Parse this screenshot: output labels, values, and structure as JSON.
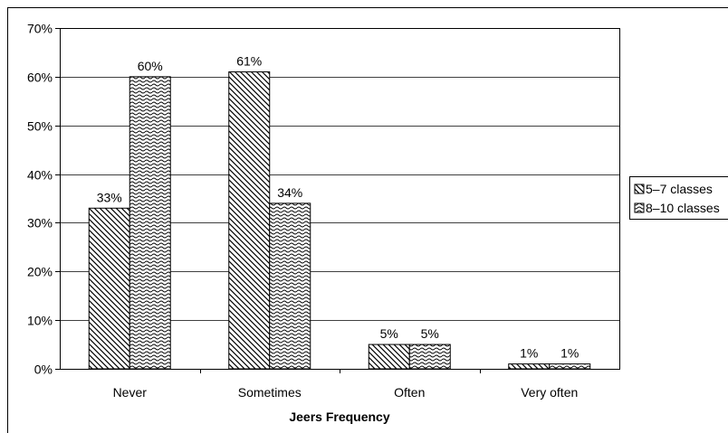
{
  "chart_data": {
    "type": "bar",
    "title": "",
    "xlabel": "Jeers Frequency",
    "ylabel": "",
    "categories": [
      "Never",
      "Sometimes",
      "Often",
      "Very often"
    ],
    "series": [
      {
        "name": "5–7 classes",
        "values": [
          33,
          61,
          5,
          1
        ],
        "labels": [
          "33%",
          "61%",
          "5%",
          "1%"
        ],
        "pattern": "diagonal-hatch"
      },
      {
        "name": "8–10 classes",
        "values": [
          60,
          34,
          5,
          1
        ],
        "labels": [
          "60%",
          "34%",
          "5%",
          "1%"
        ],
        "pattern": "wave-hatch"
      }
    ],
    "ylim": [
      0,
      70
    ],
    "yticks": [
      "0%",
      "10%",
      "20%",
      "30%",
      "40%",
      "50%",
      "60%",
      "70%"
    ],
    "grid": true,
    "legend": "right",
    "colors": {
      "bar_stroke": "#000000",
      "hatch": "#000000",
      "background": "#ffffff",
      "grid": "#000000"
    }
  }
}
